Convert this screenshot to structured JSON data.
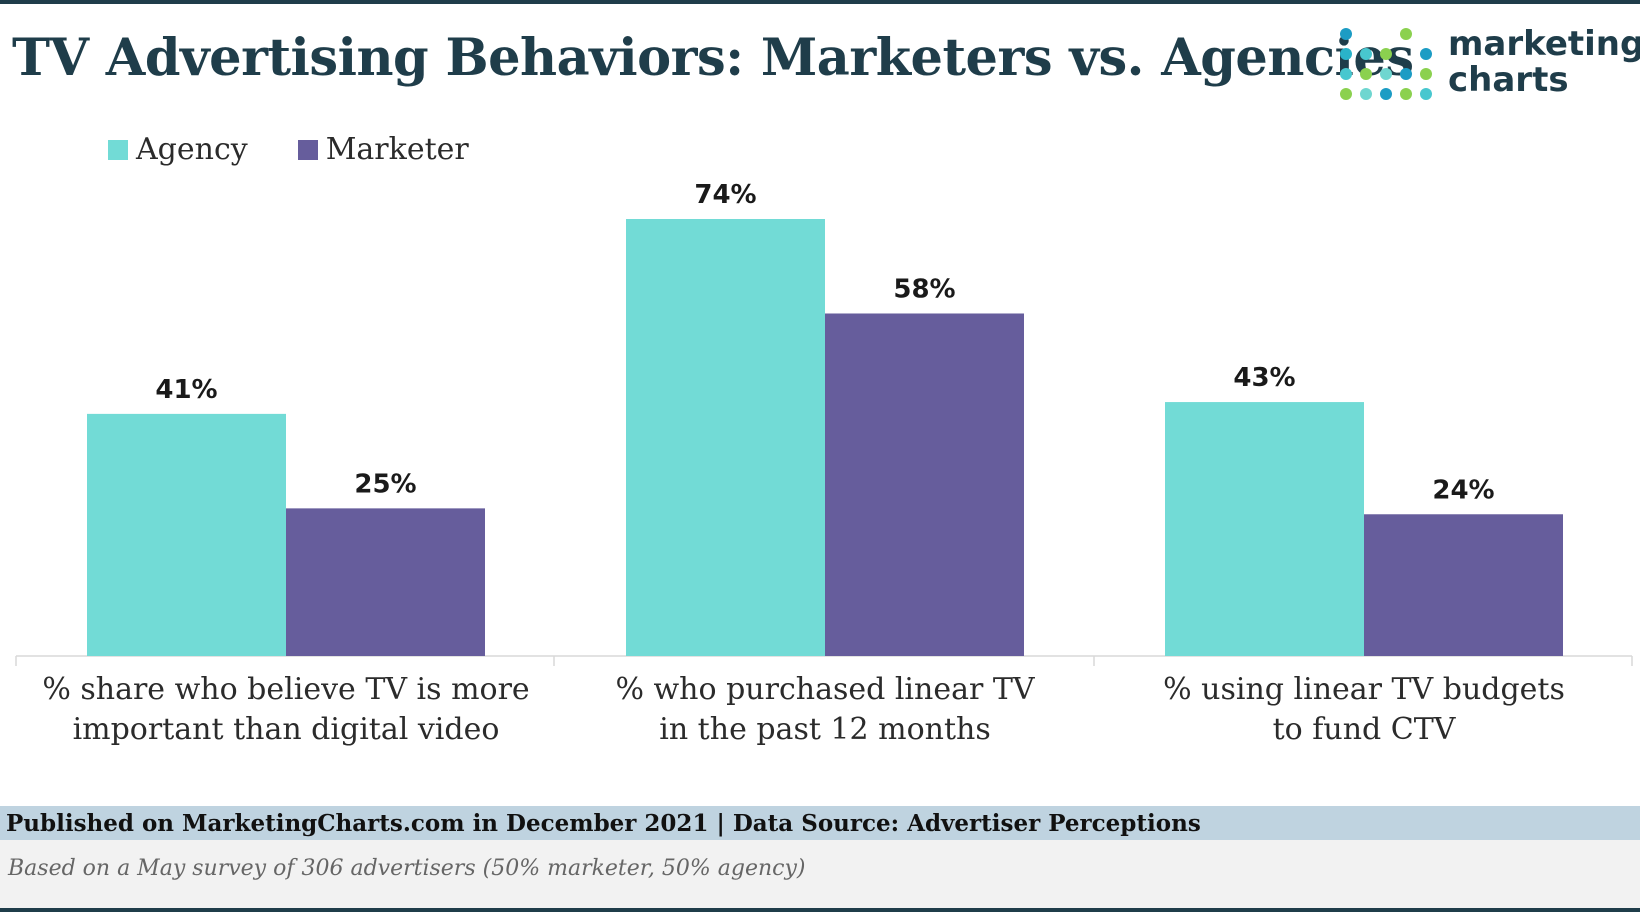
{
  "header": {
    "title": "TV Advertising Behaviors: Marketers vs. Agencies",
    "logo_line1": "marketing",
    "logo_line2": "charts"
  },
  "colors": {
    "agency": "#72dbd6",
    "marketer": "#665d9c",
    "title": "#1f3d4a"
  },
  "chart_data": {
    "type": "bar",
    "title": "TV Advertising Behaviors: Marketers vs. Agencies",
    "categories": [
      "% share who believe TV is more important than digital video",
      "% who purchased linear TV in the past 12 months",
      "% using linear TV budgets to fund CTV"
    ],
    "category_lines": [
      [
        "% share who believe TV is more",
        "important than digital video"
      ],
      [
        "% who purchased linear TV",
        "in the past 12 months"
      ],
      [
        "% using linear TV budgets",
        "to fund CTV"
      ]
    ],
    "series": [
      {
        "name": "Agency",
        "values": [
          41,
          74,
          43
        ],
        "labels": [
          "41%",
          "74%",
          "43%"
        ]
      },
      {
        "name": "Marketer",
        "values": [
          25,
          58,
          24
        ],
        "labels": [
          "25%",
          "58%",
          "24%"
        ]
      }
    ],
    "ylim": [
      0,
      80
    ],
    "legend": "top-left",
    "grid": false
  },
  "footer": {
    "published": "Published on MarketingCharts.com in December 2021 | Data Source: Advertiser Perceptions",
    "note": "Based on a May survey of 306 advertisers (50% marketer, 50% agency)"
  }
}
